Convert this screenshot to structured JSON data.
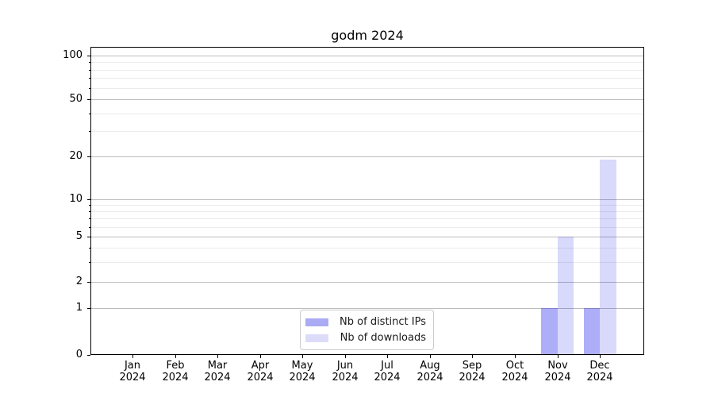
{
  "chart": {
    "title": "godm 2024",
    "legend": {
      "items": [
        {
          "label": "Nb of distinct IPs"
        },
        {
          "label": "Nb of downloads"
        }
      ]
    },
    "x_axis": {
      "months": [
        "Jan",
        "Feb",
        "Mar",
        "Apr",
        "May",
        "Jun",
        "Jul",
        "Aug",
        "Sep",
        "Oct",
        "Nov",
        "Dec"
      ],
      "year": "2024"
    },
    "y_axis": {
      "major_ticks": [
        0,
        1,
        2,
        5,
        10,
        20,
        50,
        100
      ],
      "minor_ticks": [
        3,
        4,
        6,
        7,
        8,
        9,
        30,
        40,
        60,
        70,
        80,
        90
      ]
    }
  },
  "chart_data": {
    "type": "bar",
    "title": "godm 2024",
    "categories": [
      "Jan 2024",
      "Feb 2024",
      "Mar 2024",
      "Apr 2024",
      "May 2024",
      "Jun 2024",
      "Jul 2024",
      "Aug 2024",
      "Sep 2024",
      "Oct 2024",
      "Nov 2024",
      "Dec 2024"
    ],
    "series": [
      {
        "name": "Nb of distinct IPs",
        "color": "rgba(20,20,235,0.35)",
        "solid_color": "#aaaaf5",
        "values": [
          0,
          0,
          0,
          0,
          0,
          0,
          0,
          0,
          0,
          0,
          1,
          1
        ]
      },
      {
        "name": "Nb of downloads",
        "color": "rgba(20,20,235,0.16)",
        "solid_color": "#dcdcf8",
        "values": [
          0,
          0,
          0,
          0,
          0,
          0,
          0,
          0,
          0,
          0,
          5,
          19
        ]
      }
    ],
    "xlabel": "",
    "ylabel": "",
    "yscale": "symlog",
    "yticks": [
      0,
      1,
      2,
      5,
      10,
      20,
      50,
      100
    ],
    "ylim": [
      0,
      115
    ],
    "grid": "horizontal major+minor",
    "legend_position": "lower center"
  }
}
